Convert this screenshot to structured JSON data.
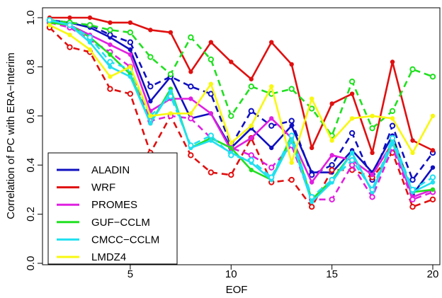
{
  "chart_data": {
    "type": "line",
    "title": "",
    "xlabel": "EOF",
    "ylabel": "Correlation of PC with ERA−Interim",
    "xlim": [
      0.5,
      20.5
    ],
    "ylim": [
      0.0,
      1.03
    ],
    "x_ticks": [
      5,
      10,
      15,
      20
    ],
    "y_ticks": [
      0.0,
      0.2,
      0.4,
      0.6,
      0.8,
      1.0
    ],
    "x_tick_labels": [
      "5",
      "10",
      "15",
      "20"
    ],
    "y_tick_labels": [
      "0.0",
      "0.2",
      "0.4",
      "0.6",
      "0.8",
      "1.0"
    ],
    "x": [
      1,
      2,
      3,
      4,
      5,
      6,
      7,
      8,
      9,
      10,
      11,
      12,
      13,
      14,
      15,
      16,
      17,
      18,
      19,
      20
    ],
    "legend_position": "bottom-left",
    "grid": false,
    "series": [
      {
        "name": "ALADIN",
        "color": "#1010c0",
        "style": "solid",
        "values": [
          0.99,
          0.98,
          0.96,
          0.92,
          0.87,
          0.66,
          0.76,
          0.59,
          0.61,
          0.47,
          0.55,
          0.47,
          0.56,
          0.37,
          0.37,
          0.46,
          0.37,
          0.52,
          0.28,
          0.39
        ]
      },
      {
        "name": "ALADIN",
        "color": "#1010c0",
        "style": "dashed",
        "values": [
          0.99,
          0.98,
          0.97,
          0.93,
          0.9,
          0.72,
          0.76,
          0.72,
          0.69,
          0.48,
          0.62,
          0.56,
          0.58,
          0.36,
          0.4,
          0.53,
          0.34,
          0.56,
          0.34,
          0.45
        ]
      },
      {
        "name": "WRF",
        "color": "#e01010",
        "style": "solid",
        "values": [
          1.0,
          1.0,
          1.0,
          0.98,
          0.98,
          0.95,
          0.94,
          0.78,
          0.9,
          0.82,
          0.75,
          0.9,
          0.81,
          0.47,
          0.65,
          0.69,
          0.45,
          0.82,
          0.5,
          0.46
        ]
      },
      {
        "name": "WRF",
        "color": "#e01010",
        "style": "dashed",
        "values": [
          0.96,
          0.88,
          0.86,
          0.71,
          0.69,
          0.45,
          0.6,
          0.44,
          0.37,
          0.36,
          0.51,
          0.33,
          0.34,
          0.23,
          0.38,
          0.38,
          0.35,
          0.45,
          0.23,
          0.26
        ]
      },
      {
        "name": "PROMES",
        "color": "#e020e0",
        "style": "solid",
        "values": [
          0.99,
          0.97,
          0.93,
          0.89,
          0.85,
          0.62,
          0.67,
          0.67,
          0.61,
          0.46,
          0.51,
          0.59,
          0.51,
          0.33,
          0.44,
          0.42,
          0.36,
          0.49,
          0.27,
          0.3
        ]
      },
      {
        "name": "PROMES",
        "color": "#e020e0",
        "style": "dashed",
        "values": [
          0.98,
          0.96,
          0.91,
          0.86,
          0.8,
          0.58,
          0.6,
          0.59,
          0.51,
          0.47,
          0.44,
          0.39,
          0.48,
          0.26,
          0.26,
          0.4,
          0.27,
          0.47,
          0.26,
          0.29
        ]
      },
      {
        "name": "GUF−CCLM",
        "color": "#20e020",
        "style": "solid",
        "values": [
          0.98,
          0.97,
          0.92,
          0.85,
          0.77,
          0.57,
          0.71,
          0.47,
          0.51,
          0.47,
          0.38,
          0.34,
          0.52,
          0.26,
          0.34,
          0.45,
          0.29,
          0.5,
          0.29,
          0.3
        ]
      },
      {
        "name": "GUF−CCLM",
        "color": "#20e020",
        "style": "dashed",
        "values": [
          0.99,
          0.98,
          0.97,
          0.95,
          0.94,
          0.84,
          0.77,
          0.92,
          0.83,
          0.6,
          0.72,
          0.69,
          0.71,
          0.63,
          0.52,
          0.74,
          0.55,
          0.62,
          0.79,
          0.76
        ]
      },
      {
        "name": "CMCC−CCLM",
        "color": "#20e0f0",
        "style": "solid",
        "values": [
          0.99,
          0.97,
          0.9,
          0.8,
          0.76,
          0.57,
          0.7,
          0.47,
          0.5,
          0.45,
          0.41,
          0.34,
          0.5,
          0.25,
          0.33,
          0.45,
          0.29,
          0.49,
          0.29,
          0.33
        ]
      },
      {
        "name": "CMCC−CCLM",
        "color": "#20e0f0",
        "style": "dashed",
        "values": [
          0.99,
          0.97,
          0.92,
          0.82,
          0.79,
          0.6,
          0.68,
          0.48,
          0.52,
          0.44,
          0.42,
          0.35,
          0.52,
          0.27,
          0.34,
          0.42,
          0.3,
          0.51,
          0.3,
          0.35
        ]
      },
      {
        "name": "LMDZ4",
        "color": "#f8f810",
        "style": "solid",
        "values": [
          0.97,
          0.93,
          0.87,
          0.76,
          0.8,
          0.6,
          0.61,
          0.61,
          0.73,
          0.49,
          0.56,
          0.72,
          0.41,
          0.67,
          0.5,
          0.59,
          0.6,
          0.59,
          0.45,
          0.6
        ]
      }
    ],
    "legend": [
      {
        "label": "ALADIN",
        "color": "#1010c0"
      },
      {
        "label": "WRF",
        "color": "#e01010"
      },
      {
        "label": "PROMES",
        "color": "#e020e0"
      },
      {
        "label": "GUF−CCLM",
        "color": "#20e020"
      },
      {
        "label": "CMCC−CCLM",
        "color": "#20e0f0"
      },
      {
        "label": "LMDZ4",
        "color": "#f8f810"
      }
    ]
  }
}
